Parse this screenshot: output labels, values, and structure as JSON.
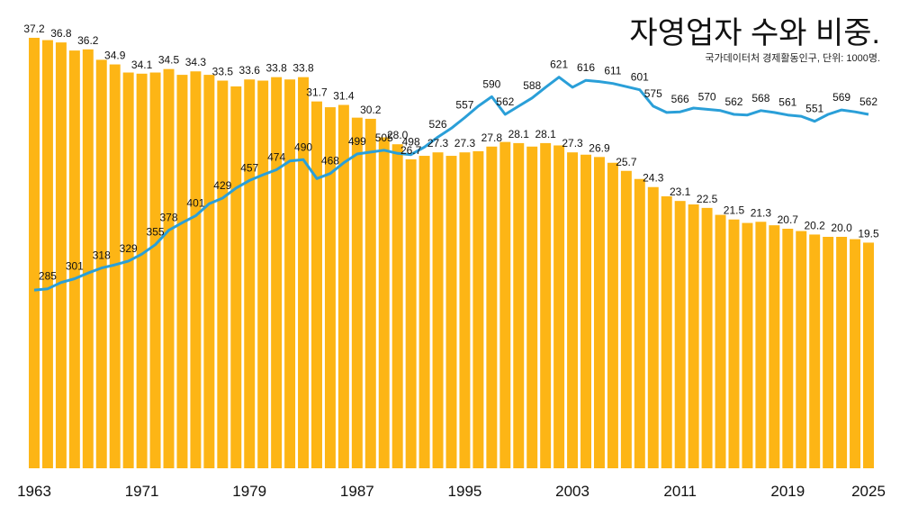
{
  "chart_data": {
    "type": "bar-line",
    "title": "자영업자 수와 비중.",
    "subtitle": "국가데이터처 경제활동인구, 단위: 1000명.",
    "categories": [
      "1963",
      null,
      null,
      null,
      null,
      null,
      null,
      null,
      "1971",
      null,
      null,
      null,
      null,
      null,
      null,
      null,
      "1979",
      null,
      null,
      null,
      null,
      null,
      null,
      null,
      "1987",
      null,
      null,
      null,
      null,
      null,
      null,
      null,
      "1995",
      null,
      null,
      null,
      null,
      null,
      null,
      null,
      "2003",
      null,
      null,
      null,
      null,
      null,
      null,
      null,
      "2011",
      null,
      null,
      null,
      null,
      null,
      null,
      null,
      "2019",
      null,
      null,
      null,
      null,
      null,
      "2025"
    ],
    "ylim": [
      0,
      40
    ],
    "y2lim": [
      0,
      735
    ],
    "series": [
      {
        "type": "bar",
        "color": "#fdb515",
        "values": [
          37.2,
          37.0,
          36.8,
          36.1,
          36.2,
          35.3,
          34.9,
          34.2,
          34.1,
          34.2,
          34.5,
          34.0,
          34.3,
          34.0,
          33.5,
          33.0,
          33.6,
          33.5,
          33.8,
          33.6,
          33.8,
          31.7,
          31.2,
          31.4,
          30.3,
          30.2,
          28.6,
          28.0,
          26.7,
          27.0,
          27.3,
          27.0,
          27.3,
          27.4,
          27.8,
          28.2,
          28.1,
          27.8,
          28.1,
          27.9,
          27.3,
          27.1,
          26.9,
          26.4,
          25.7,
          25.0,
          24.3,
          23.5,
          23.1,
          22.8,
          22.5,
          21.9,
          21.5,
          21.2,
          21.3,
          21.0,
          20.7,
          20.5,
          20.2,
          20.0,
          20.0,
          19.8,
          19.5
        ],
        "value_labels": [
          "37.2",
          null,
          "36.8",
          null,
          "36.2",
          null,
          "34.9",
          null,
          "34.1",
          null,
          "34.5",
          null,
          "34.3",
          null,
          "33.5",
          null,
          "33.6",
          null,
          "33.8",
          null,
          "33.8",
          "31.7",
          null,
          "31.4",
          null,
          "30.2",
          null,
          "28.0",
          "26.7",
          null,
          "27.3",
          null,
          "27.3",
          null,
          "27.8",
          null,
          "28.1",
          null,
          "28.1",
          null,
          "27.3",
          null,
          "26.9",
          null,
          "25.7",
          null,
          "24.3",
          null,
          "23.1",
          null,
          "22.5",
          null,
          "21.5",
          null,
          "21.3",
          null,
          "20.7",
          null,
          "20.2",
          null,
          "20.0",
          null,
          "19.5"
        ]
      },
      {
        "type": "line",
        "axis": "y2",
        "color": "#2a9fd8",
        "values": [
          283,
          285,
          295,
          301,
          310,
          318,
          323,
          329,
          340,
          355,
          378,
          390,
          401,
          420,
          429,
          445,
          457,
          466,
          474,
          488,
          490,
          460,
          468,
          485,
          499,
          502,
          505,
          500,
          498,
          510,
          526,
          540,
          557,
          575,
          590,
          562,
          575,
          588,
          605,
          621,
          605,
          616,
          614,
          611,
          606,
          601,
          575,
          565,
          566,
          572,
          570,
          568,
          562,
          561,
          568,
          565,
          561,
          559,
          551,
          562,
          569,
          566,
          562
        ],
        "value_labels": [
          null,
          "285",
          null,
          "301",
          null,
          "318",
          null,
          "329",
          null,
          "355",
          "378",
          null,
          "401",
          null,
          "429",
          null,
          "457",
          null,
          "474",
          null,
          "490",
          null,
          "468",
          null,
          "499",
          null,
          "505",
          null,
          "498",
          null,
          "526",
          null,
          "557",
          null,
          "590",
          "562",
          null,
          "588",
          null,
          "621",
          null,
          "616",
          null,
          "611",
          null,
          "601",
          "575",
          null,
          "566",
          null,
          "570",
          null,
          "562",
          null,
          "568",
          null,
          "561",
          null,
          "551",
          null,
          "569",
          null,
          "562"
        ]
      }
    ]
  }
}
